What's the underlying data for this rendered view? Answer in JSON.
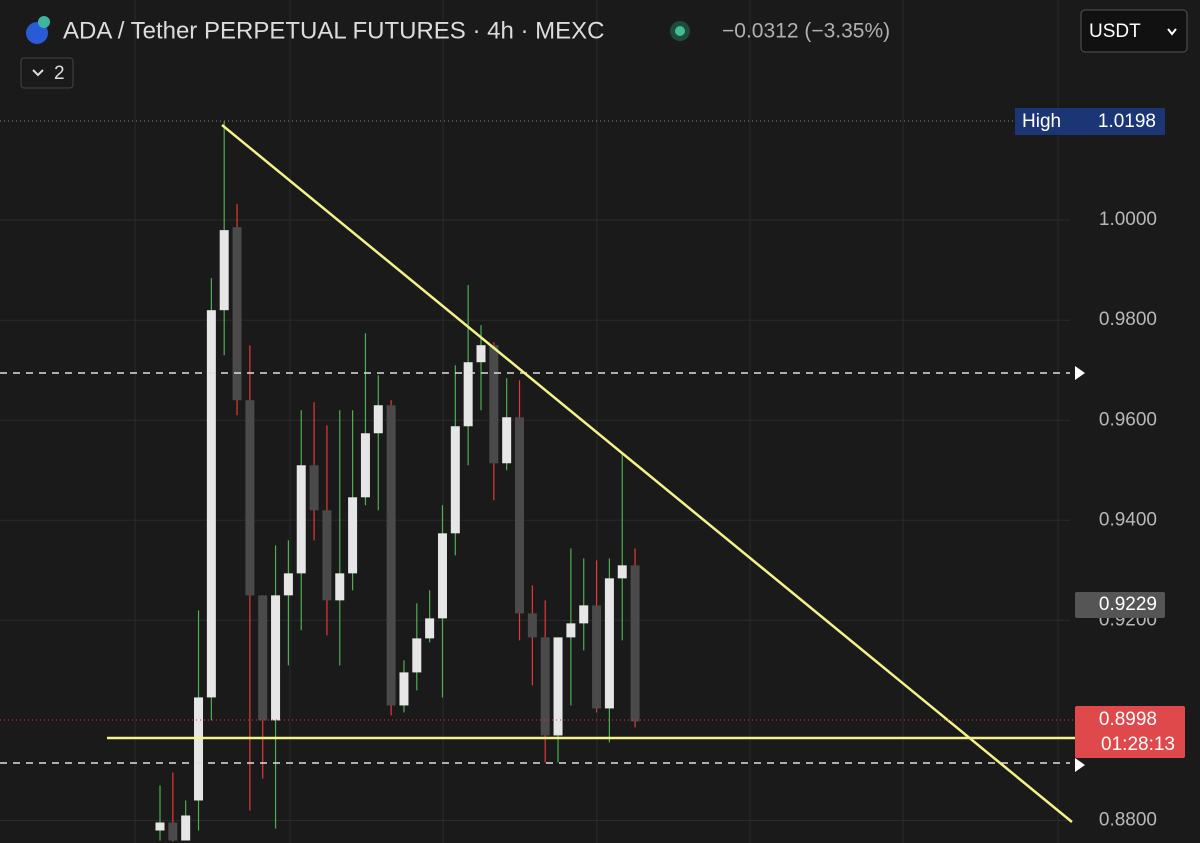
{
  "header": {
    "title": "ADA / Tether PERPETUAL FUTURES · 4h · MEXC",
    "change": "−0.0312 (−3.35%)",
    "currency": "USDT",
    "indicator_count": "2"
  },
  "price_labels": {
    "high_label": "High",
    "high_value": "1.0198",
    "indicator_value": "0.9229",
    "last_price": "0.8998",
    "countdown": "01:28:13"
  },
  "chart_data": {
    "type": "candlestick",
    "up_color": "#e6e6e6",
    "down_color": "#4a4a4a",
    "up_wick_color": "#4caf50",
    "down_wick_color": "#e53935",
    "ylim": [
      0.8755,
      1.044
    ],
    "yticks": [
      {
        "value": 0.88,
        "label": "0.8800"
      },
      {
        "value": 0.92,
        "label": "0.9200"
      },
      {
        "value": 0.94,
        "label": "0.9400"
      },
      {
        "value": 0.96,
        "label": "0.9600"
      },
      {
        "value": 0.98,
        "label": "0.9800"
      },
      {
        "value": 1,
        "label": "1.0000"
      }
    ],
    "grid": true,
    "open": [
      0.878,
      0.8796,
      0.876,
      0.884,
      0.9046,
      0.982,
      0.9986,
      0.964,
      0.925,
      0.9,
      0.925,
      0.9294,
      0.951,
      0.942,
      0.924,
      0.9294,
      0.9446,
      0.9574,
      0.963,
      0.903,
      0.9096,
      0.9164,
      0.9204,
      0.9374,
      0.9588,
      0.9716,
      0.975,
      0.9514,
      0.9606,
      0.9214,
      0.9166,
      0.897,
      0.9166,
      0.9194,
      0.923,
      0.9024,
      0.9284,
      0.931
    ],
    "high": [
      0.887,
      0.8896,
      0.884,
      0.922,
      0.9884,
      1.0198,
      1.0032,
      0.975,
      0.925,
      0.935,
      0.936,
      0.962,
      0.9636,
      0.959,
      0.962,
      0.962,
      0.9774,
      0.969,
      0.964,
      0.912,
      0.9234,
      0.926,
      0.943,
      0.971,
      0.987,
      0.979,
      0.9756,
      0.9684,
      0.968,
      0.927,
      0.924,
      0.9166,
      0.9344,
      0.9324,
      0.932,
      0.9324,
      0.9536,
      0.9344
    ],
    "low": [
      0.876,
      0.8758,
      0.876,
      0.878,
      0.9,
      0.973,
      0.961,
      0.882,
      0.8884,
      0.8784,
      0.911,
      0.918,
      0.936,
      0.917,
      0.911,
      0.926,
      0.943,
      0.942,
      0.901,
      0.9016,
      0.906,
      0.9156,
      0.9046,
      0.933,
      0.951,
      0.962,
      0.944,
      0.95,
      0.916,
      0.907,
      0.8916,
      0.8916,
      0.903,
      0.914,
      0.9016,
      0.8956,
      0.916,
      0.8986
    ],
    "close": [
      0.8796,
      0.876,
      0.881,
      0.9046,
      0.982,
      0.998,
      0.964,
      0.925,
      0.9,
      0.925,
      0.9294,
      0.951,
      0.942,
      0.924,
      0.9294,
      0.9446,
      0.9574,
      0.963,
      0.903,
      0.9096,
      0.9164,
      0.9204,
      0.9374,
      0.9588,
      0.9716,
      0.975,
      0.9514,
      0.9606,
      0.9214,
      0.9166,
      0.897,
      0.9166,
      0.9194,
      0.923,
      0.9024,
      0.9284,
      0.931,
      0.8998
    ]
  }
}
